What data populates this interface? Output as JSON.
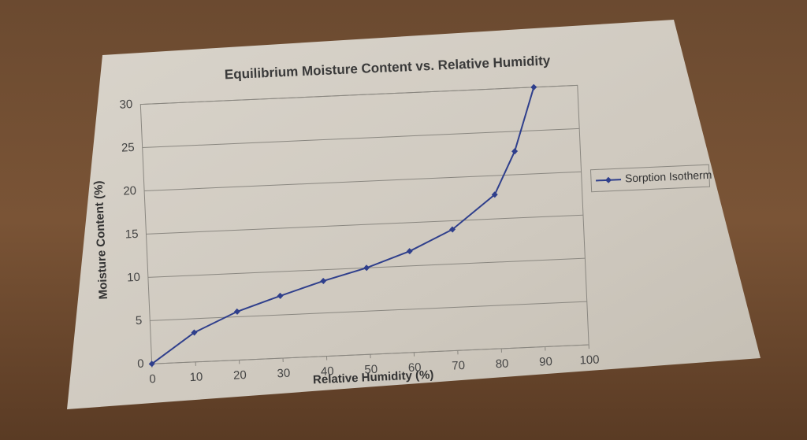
{
  "chart_data": {
    "type": "line",
    "title": "Equilibrium Moisture Content vs. Relative Humidity",
    "x_label": "Relative Humidity (%)",
    "y_label": "Moisture Content (%)",
    "x": [
      0,
      10,
      20,
      30,
      40,
      50,
      60,
      70,
      80,
      85,
      90
    ],
    "series": [
      {
        "name": "Sorption Isotherm",
        "color": "#2f3f8c",
        "values": [
          0,
          3.4,
          5.6,
          7.2,
          8.7,
          10,
          11.7,
          14,
          17.8,
          22.7,
          30
        ]
      }
    ],
    "xlim": [
      0,
      100
    ],
    "xticks": [
      0,
      10,
      20,
      30,
      40,
      50,
      60,
      70,
      80,
      90,
      100
    ],
    "ylim": [
      0,
      30
    ],
    "yticks": [
      0,
      5,
      10,
      15,
      20,
      25,
      30
    ],
    "grid": true,
    "legend": "right"
  }
}
